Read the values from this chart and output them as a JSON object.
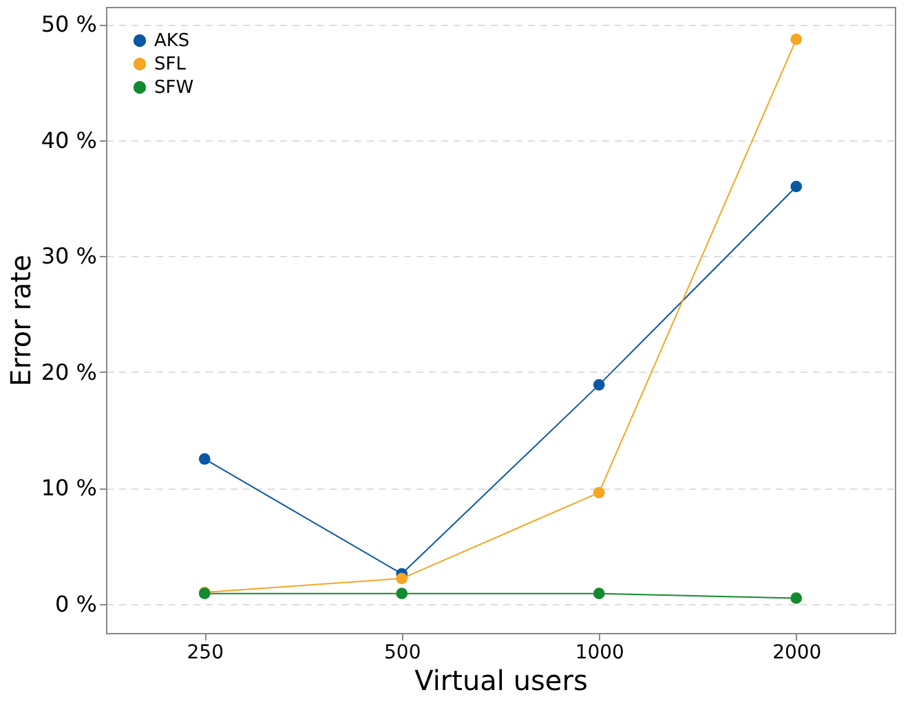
{
  "chart_data": {
    "type": "line",
    "xlabel": "Virtual users",
    "ylabel": "Error rate",
    "categories": [
      "250",
      "500",
      "1000",
      "2000"
    ],
    "series": [
      {
        "name": "AKS",
        "color": "#0b57a4",
        "values": [
          12.5,
          2.6,
          18.9,
          36.0
        ]
      },
      {
        "name": "SFL",
        "color": "#f5a623",
        "values": [
          1.0,
          2.2,
          9.6,
          48.7
        ]
      },
      {
        "name": "SFW",
        "color": "#138a2e",
        "values": [
          0.9,
          0.9,
          0.9,
          0.5
        ]
      }
    ],
    "ylim": [
      -2.5,
      51.5
    ],
    "yticks": [
      {
        "value": 0,
        "label": "0 %"
      },
      {
        "value": 10,
        "label": "10 %"
      },
      {
        "value": 20,
        "label": "20 %"
      },
      {
        "value": 30,
        "label": "30 %"
      },
      {
        "value": 40,
        "label": "40 %"
      },
      {
        "value": 50,
        "label": "50 %"
      }
    ],
    "grid": "y",
    "legend": "top left",
    "marker": "circle",
    "line_style": "solid"
  }
}
